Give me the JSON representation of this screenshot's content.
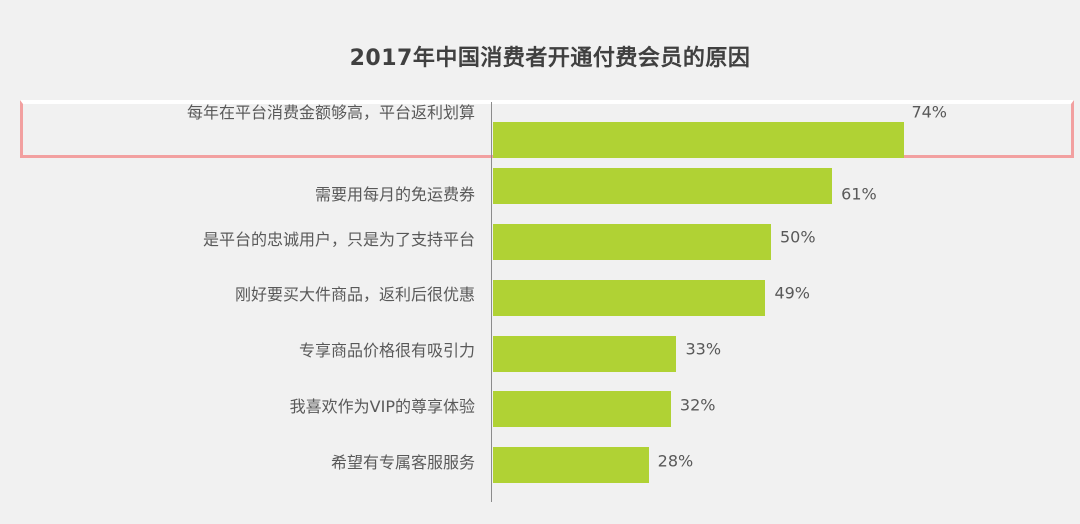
{
  "chart_data": {
    "type": "bar",
    "orientation": "horizontal",
    "title": "2017年中国消费者开通付费会员的原因",
    "categories": [
      "每年在平台消费金额够高，平台返利划算",
      "需要用每月的免运费券",
      "是平台的忠诚用户，只是为了支持平台",
      "刚好要买大件商品，返利后很优惠",
      "专享商品价格很有吸引力",
      "我喜欢作为VIP的尊享体验",
      "希望有专属客服服务"
    ],
    "values": [
      74,
      61,
      50,
      49,
      33,
      32,
      28
    ],
    "value_labels": [
      "74%",
      "61%",
      "50%",
      "49%",
      "33%",
      "32%",
      "28%"
    ],
    "unit": "%",
    "highlighted_category": "每年在平台消费金额够高，平台返利划算",
    "colors": {
      "bar": "#b0d234",
      "highlight_border": "#f2a0a0",
      "text": "#595959",
      "title": "#404040",
      "background": "#f1f1f1"
    }
  }
}
